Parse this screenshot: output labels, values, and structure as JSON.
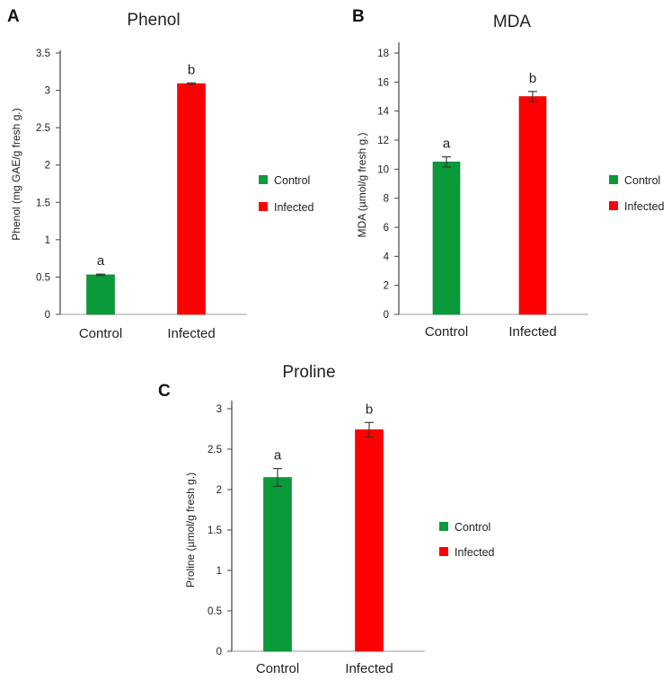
{
  "colors": {
    "control": "#0a9a3a",
    "infected": "#ff0000",
    "axis": "#444444",
    "text": "#222222"
  },
  "chart_data": [
    {
      "panel": "A",
      "type": "bar",
      "title": "Phenol",
      "ylabel": "Phenol (mg GAE/g fresh g.)",
      "xlabel": "",
      "categories": [
        "Control",
        "Infected"
      ],
      "values": [
        0.53,
        3.09
      ],
      "errors": [
        0.01,
        0.01
      ],
      "significance": [
        "a",
        "b"
      ],
      "ylim": [
        0,
        3.5
      ],
      "yticks": [
        0,
        0.5,
        1,
        1.5,
        2,
        2.5,
        3,
        3.5
      ],
      "ytick_labels": [
        "0",
        "0.5",
        "1",
        "1.5",
        "2",
        "2.5",
        "3",
        "3.5"
      ],
      "legend": [
        "Control",
        "Infected"
      ],
      "legend_position": "right",
      "grid": false
    },
    {
      "panel": "B",
      "type": "bar",
      "title": "MDA",
      "ylabel": "MDA (µmol/g fresh g.)",
      "xlabel": "",
      "categories": [
        "Control",
        "Infected"
      ],
      "values": [
        10.5,
        15.0
      ],
      "errors": [
        0.35,
        0.35
      ],
      "significance": [
        "a",
        "b"
      ],
      "ylim": [
        0,
        18
      ],
      "yticks": [
        0,
        2,
        4,
        6,
        8,
        10,
        12,
        14,
        16,
        18
      ],
      "ytick_labels": [
        "0",
        "2",
        "4",
        "6",
        "8",
        "10",
        "12",
        "14",
        "16",
        "18"
      ],
      "legend": [
        "Control",
        "Infected"
      ],
      "legend_position": "right",
      "grid": false
    },
    {
      "panel": "C",
      "type": "bar",
      "title": "Proline",
      "ylabel": "Proline (µmol/g fresh g.)",
      "xlabel": "",
      "categories": [
        "Control",
        "Infected"
      ],
      "values": [
        2.15,
        2.74
      ],
      "errors": [
        0.11,
        0.09
      ],
      "significance": [
        "a",
        "b"
      ],
      "ylim": [
        0,
        3
      ],
      "yticks": [
        0,
        0.5,
        1,
        1.5,
        2,
        2.5,
        3
      ],
      "ytick_labels": [
        "0",
        "0.5",
        "1",
        "1.5",
        "2",
        "2.5",
        "3"
      ],
      "legend": [
        "Control",
        "Infected"
      ],
      "legend_position": "right",
      "grid": false
    }
  ]
}
